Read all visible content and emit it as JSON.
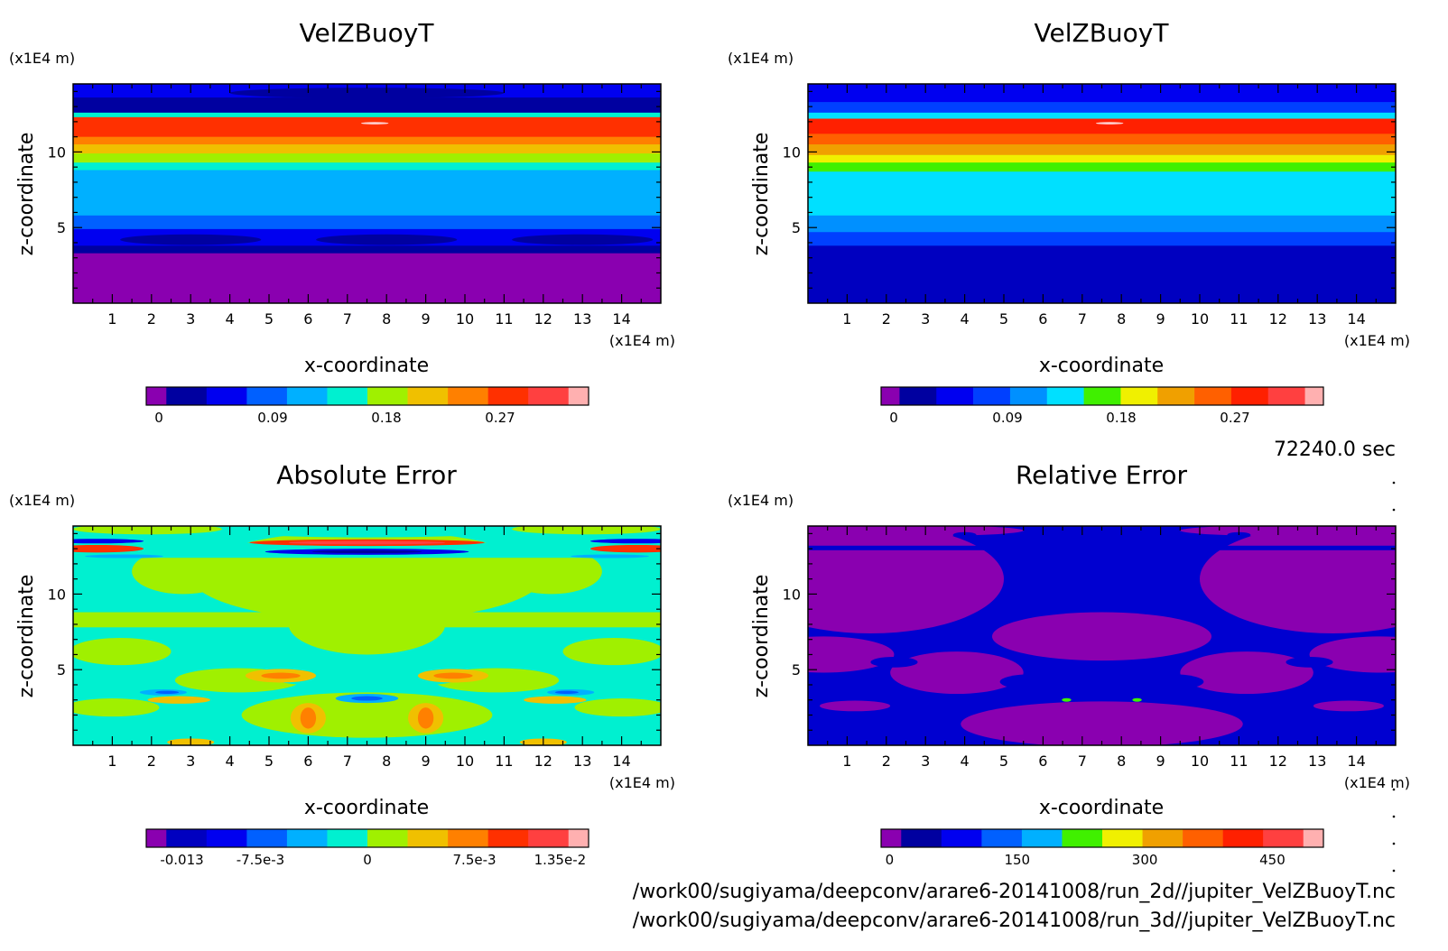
{
  "time_label": "72240.0 sec",
  "files": [
    "/work00/sugiyama/deepconv/arare6-20141008/run_2d//jupiter_VelZBuoyT.nc",
    "/work00/sugiyama/deepconv/arare6-20141008/run_3d//jupiter_VelZBuoyT.nc"
  ],
  "chart_data": [
    {
      "type": "heatmap",
      "title": "VelZBuoyT",
      "xlabel": "x-coordinate",
      "ylabel": "z-coordinate",
      "x_unit": "(x1E4 m)",
      "y_unit": "(x1E4 m)",
      "xlim": [
        0,
        15
      ],
      "ylim": [
        0,
        14.5
      ],
      "x_ticks": [
        1,
        2,
        3,
        4,
        5,
        6,
        7,
        8,
        9,
        10,
        11,
        12,
        13,
        14
      ],
      "y_ticks": [
        5,
        10
      ],
      "colorbar": {
        "min": -0.01,
        "max": 0.34,
        "labels": [
          "0",
          "0.09",
          "0.18",
          "0.27"
        ],
        "label_values": [
          0,
          0.09,
          0.18,
          0.27
        ],
        "colors": [
          "#8a00b0",
          "#0000a0",
          "#0000f0",
          "#0060ff",
          "#00b0ff",
          "#00f0d0",
          "#a0f000",
          "#f0c000",
          "#ff8000",
          "#ff3000",
          "#ff4040",
          "#ffb0b0"
        ]
      },
      "bands": [
        {
          "z_top": 14.5,
          "value": 0.02,
          "color": "#0000f0"
        },
        {
          "z_top": 13.6,
          "value": 0.01,
          "color": "#0000a0"
        },
        {
          "z_top": 12.6,
          "value": 0.15,
          "color": "#00f0d0"
        },
        {
          "z_top": 12.3,
          "value": 0.3,
          "color": "#ff3000"
        },
        {
          "z_top": 11.0,
          "value": 0.27,
          "color": "#ff8000"
        },
        {
          "z_top": 10.5,
          "value": 0.22,
          "color": "#f0c000"
        },
        {
          "z_top": 9.9,
          "value": 0.2,
          "color": "#a0f000"
        },
        {
          "z_top": 9.3,
          "value": 0.14,
          "color": "#00f0d0"
        },
        {
          "z_top": 8.8,
          "value": 0.1,
          "color": "#00b0ff"
        },
        {
          "z_top": 5.8,
          "value": 0.07,
          "color": "#0060ff"
        },
        {
          "z_top": 4.9,
          "value": 0.02,
          "color": "#0000f0"
        },
        {
          "z_top": 3.8,
          "value": 0.0,
          "color": "#0000a0"
        },
        {
          "z_top": 3.3,
          "value": -0.01,
          "color": "#8a00b0"
        }
      ]
    },
    {
      "type": "heatmap",
      "title": "VelZBuoyT",
      "xlabel": "x-coordinate",
      "ylabel": "z-coordinate",
      "x_unit": "(x1E4 m)",
      "y_unit": "(x1E4 m)",
      "xlim": [
        0,
        15
      ],
      "ylim": [
        0,
        14.5
      ],
      "x_ticks": [
        1,
        2,
        3,
        4,
        5,
        6,
        7,
        8,
        9,
        10,
        11,
        12,
        13,
        14
      ],
      "y_ticks": [
        5,
        10
      ],
      "colorbar": {
        "min": -0.01,
        "max": 0.34,
        "labels": [
          "0",
          "0.09",
          "0.18",
          "0.27"
        ],
        "label_values": [
          0,
          0.09,
          0.18,
          0.27
        ],
        "colors": [
          "#8a00b0",
          "#0000a0",
          "#0000f0",
          "#0040ff",
          "#0090ff",
          "#00e0ff",
          "#40f000",
          "#f0f000",
          "#f0a000",
          "#ff6000",
          "#ff2000",
          "#ff4040",
          "#ffb0b0"
        ]
      },
      "bands": [
        {
          "z_top": 14.5,
          "value": 0.02,
          "color": "#0000f0"
        },
        {
          "z_top": 13.3,
          "value": 0.04,
          "color": "#0040ff"
        },
        {
          "z_top": 12.6,
          "value": 0.15,
          "color": "#00e0ff"
        },
        {
          "z_top": 12.2,
          "value": 0.3,
          "color": "#ff2000"
        },
        {
          "z_top": 11.2,
          "value": 0.27,
          "color": "#ff6000"
        },
        {
          "z_top": 10.5,
          "value": 0.22,
          "color": "#f0a000"
        },
        {
          "z_top": 9.8,
          "value": 0.2,
          "color": "#f0f000"
        },
        {
          "z_top": 9.3,
          "value": 0.16,
          "color": "#40f000"
        },
        {
          "z_top": 8.7,
          "value": 0.1,
          "color": "#00e0ff"
        },
        {
          "z_top": 5.8,
          "value": 0.07,
          "color": "#0090ff"
        },
        {
          "z_top": 4.7,
          "value": 0.04,
          "color": "#0040ff"
        },
        {
          "z_top": 3.8,
          "value": 0.01,
          "color": "#0000c0"
        }
      ]
    },
    {
      "type": "heatmap",
      "title": "Absolute Error",
      "xlabel": "x-coordinate",
      "ylabel": "z-coordinate",
      "x_unit": "(x1E4 m)",
      "y_unit": "(x1E4 m)",
      "xlim": [
        0,
        15
      ],
      "ylim": [
        0,
        14.5
      ],
      "x_ticks": [
        1,
        2,
        3,
        4,
        5,
        6,
        7,
        8,
        9,
        10,
        11,
        12,
        13,
        14
      ],
      "y_ticks": [
        5,
        10
      ],
      "colorbar": {
        "min": -0.0155,
        "max": 0.0155,
        "labels": [
          "-0.013",
          "-7.5e-3",
          "0",
          "7.5e-3",
          "1.35e-2"
        ],
        "label_values": [
          -0.013,
          -0.0075,
          0,
          0.0075,
          0.0135
        ],
        "colors": [
          "#8a00b0",
          "#0000c0",
          "#0000f0",
          "#0060ff",
          "#00b0ff",
          "#00f0d0",
          "#a0f000",
          "#f0c000",
          "#ff8000",
          "#ff3000",
          "#ff4040",
          "#ffb0b0"
        ]
      },
      "background": "#a0f000",
      "regions": "symmetric error pattern about x = 7.5"
    },
    {
      "type": "heatmap",
      "title": "Relative Error",
      "xlabel": "x-coordinate",
      "ylabel": "z-coordinate",
      "x_unit": "(x1E4 m)",
      "y_unit": "(x1E4 m)",
      "xlim": [
        0,
        15
      ],
      "ylim": [
        0,
        14.5
      ],
      "x_ticks": [
        1,
        2,
        3,
        4,
        5,
        6,
        7,
        8,
        9,
        10,
        11,
        12,
        13,
        14
      ],
      "y_ticks": [
        5,
        10
      ],
      "colorbar": {
        "min": -10,
        "max": 510,
        "labels": [
          "0",
          "150",
          "300",
          "450"
        ],
        "label_values": [
          0,
          150,
          300,
          450
        ],
        "colors": [
          "#8a00b0",
          "#0000a0",
          "#0000f0",
          "#0060ff",
          "#00b0ff",
          "#40f000",
          "#f0f000",
          "#f0a000",
          "#ff6000",
          "#ff2000",
          "#ff4040",
          "#ffb0b0"
        ]
      },
      "background": "#0000d0"
    }
  ]
}
